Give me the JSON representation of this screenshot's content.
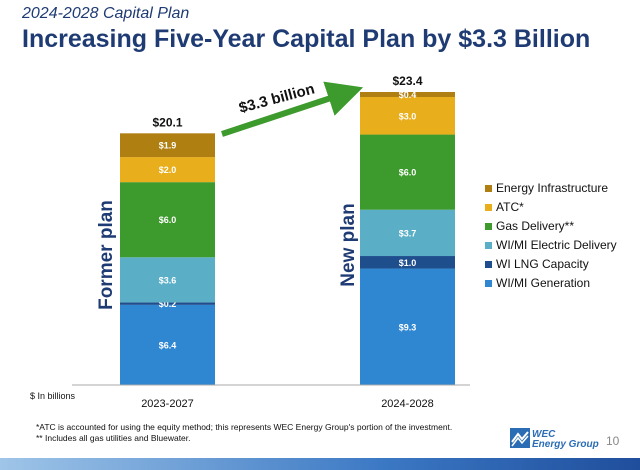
{
  "header": {
    "subtitle": "2024-2028 Capital Plan",
    "title": "Increasing Five-Year Capital Plan by $3.3 Billion"
  },
  "chart_data": {
    "type": "bar",
    "stacked": true,
    "categories": [
      "2023-2027",
      "2024-2028"
    ],
    "ylabel": "$ In billions",
    "ylim": [
      0,
      23.4
    ],
    "grid": false,
    "legend_position": "right",
    "bar_side_labels": [
      "Former plan",
      "New plan"
    ],
    "totals": [
      "$20.1",
      "$23.4"
    ],
    "series": [
      {
        "name": "WI/MI Generation",
        "color": "#2f86d1",
        "values": [
          6.4,
          9.3
        ],
        "labels": [
          "$6.4",
          "$9.3"
        ]
      },
      {
        "name": "WI LNG Capacity",
        "color": "#1f4e8c",
        "values": [
          0.2,
          1.0
        ],
        "labels": [
          "$0.2",
          "$1.0"
        ]
      },
      {
        "name": "WI/MI Electric Delivery",
        "color": "#5aafc7",
        "values": [
          3.6,
          3.7
        ],
        "labels": [
          "$3.6",
          "$3.7"
        ]
      },
      {
        "name": "Gas Delivery**",
        "color": "#3d9a2c",
        "values": [
          6.0,
          6.0
        ],
        "labels": [
          "$6.0",
          "$6.0"
        ]
      },
      {
        "name": "ATC*",
        "color": "#e8ae1b",
        "values": [
          2.0,
          3.0
        ],
        "labels": [
          "$2.0",
          "$3.0"
        ]
      },
      {
        "name": "Energy Infrastructure",
        "color": "#b07f12",
        "values": [
          1.9,
          0.4
        ],
        "labels": [
          "$1.9",
          "$0.4"
        ]
      }
    ],
    "legend_order": [
      "Energy Infrastructure",
      "ATC*",
      "Gas Delivery**",
      "WI/MI Electric Delivery",
      "WI LNG Capacity",
      "WI/MI Generation"
    ],
    "annotation": {
      "text": "$3.3 billion",
      "color": "#3d9a2c"
    }
  },
  "footnotes": [
    "*ATC is accounted for using the equity method; this represents WEC Energy Group's portion of the investment.",
    "** Includes all gas utilities and Bluewater."
  ],
  "logo": {
    "icon": "wec-logo-icon",
    "line1": "WEC",
    "line2": "Energy Group"
  },
  "page_number": "10"
}
